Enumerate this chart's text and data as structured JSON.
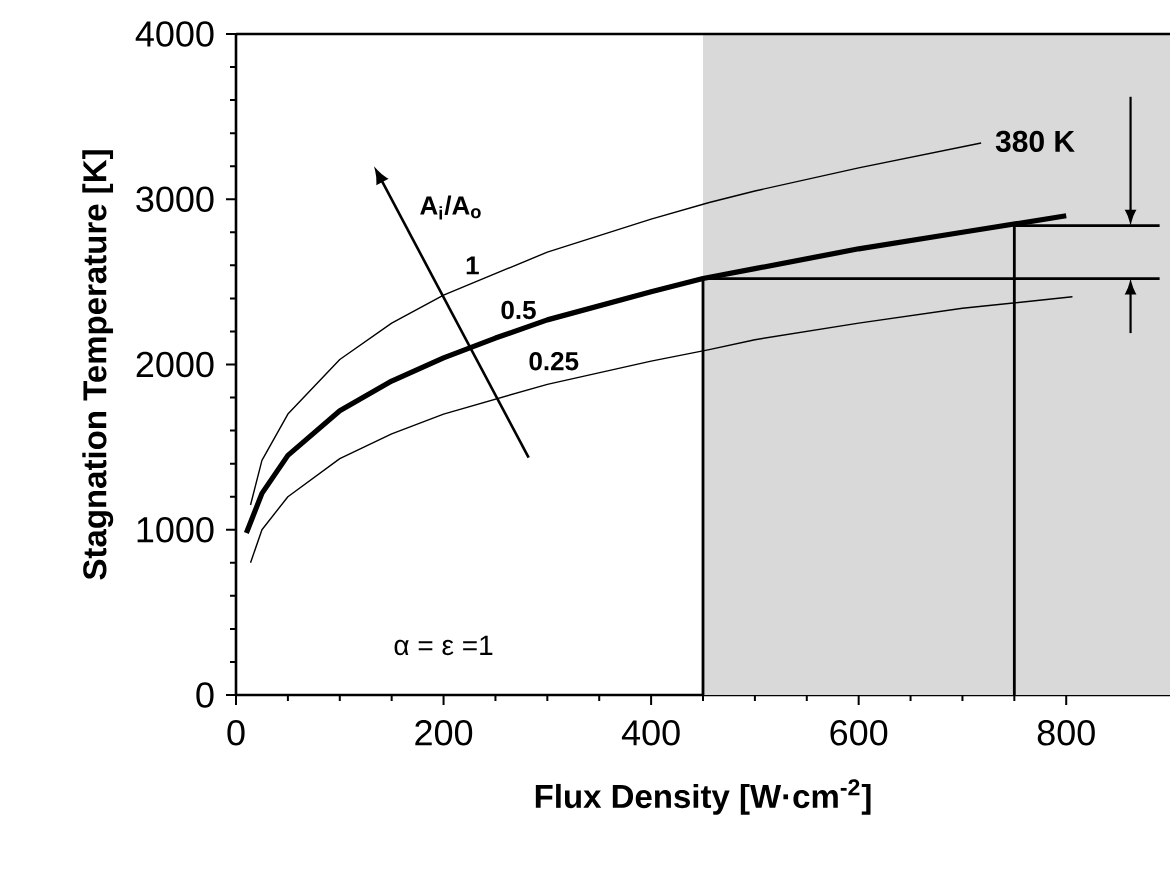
{
  "chart_data": {
    "type": "line",
    "xlabel": "Flux Density [W·cm$^{-2}$]",
    "ylabel": "Stagnation Temperature [K]",
    "legend_title": "A$_{i}$/A$_{o}$",
    "xlim": [
      0,
      900
    ],
    "ylim": [
      0,
      4000
    ],
    "xticks": [
      0,
      200,
      400,
      600,
      800
    ],
    "yticks": [
      0,
      1000,
      2000,
      3000,
      4000
    ],
    "series": [
      {
        "name": "1",
        "color": "#000000",
        "x": [
          14,
          25,
          50,
          100,
          150,
          200,
          300,
          400,
          456,
          500,
          600,
          718
        ],
        "values": [
          1150,
          1420,
          1700,
          2030,
          2250,
          2420,
          2680,
          2880,
          2980,
          3050,
          3190,
          3340
        ]
      },
      {
        "name": "0.5",
        "color": "#000000",
        "x": [
          10,
          25,
          50,
          100,
          150,
          200,
          250,
          300,
          400,
          450,
          500,
          600,
          700,
          800
        ],
        "values": [
          980,
          1220,
          1450,
          1720,
          1900,
          2040,
          2160,
          2270,
          2440,
          2520,
          2580,
          2700,
          2800,
          2900
        ]
      },
      {
        "name": "0.25",
        "color": "#000000",
        "x": [
          14,
          25,
          50,
          100,
          150,
          200,
          300,
          400,
          456,
          500,
          600,
          700,
          806
        ],
        "values": [
          800,
          1000,
          1200,
          1430,
          1580,
          1700,
          1880,
          2020,
          2090,
          2150,
          2250,
          2340,
          2410
        ]
      },
      {
        "color": "#000000",
        "x": [
          450,
          450,
          890
        ],
        "values": [
          0,
          2520,
          2520
        ]
      },
      {
        "color": "#000000",
        "x": [
          750,
          750,
          890
        ],
        "values": [
          0,
          2840,
          2840
        ]
      }
    ],
    "bands": [
      {
        "axis": "x",
        "from": 450,
        "to": 900,
        "color": "#d9d9d9"
      }
    ],
    "annotations": [
      "α = ε =1",
      "380 K"
    ],
    "grid": false,
    "marker": "none",
    "line_style": "solid"
  }
}
